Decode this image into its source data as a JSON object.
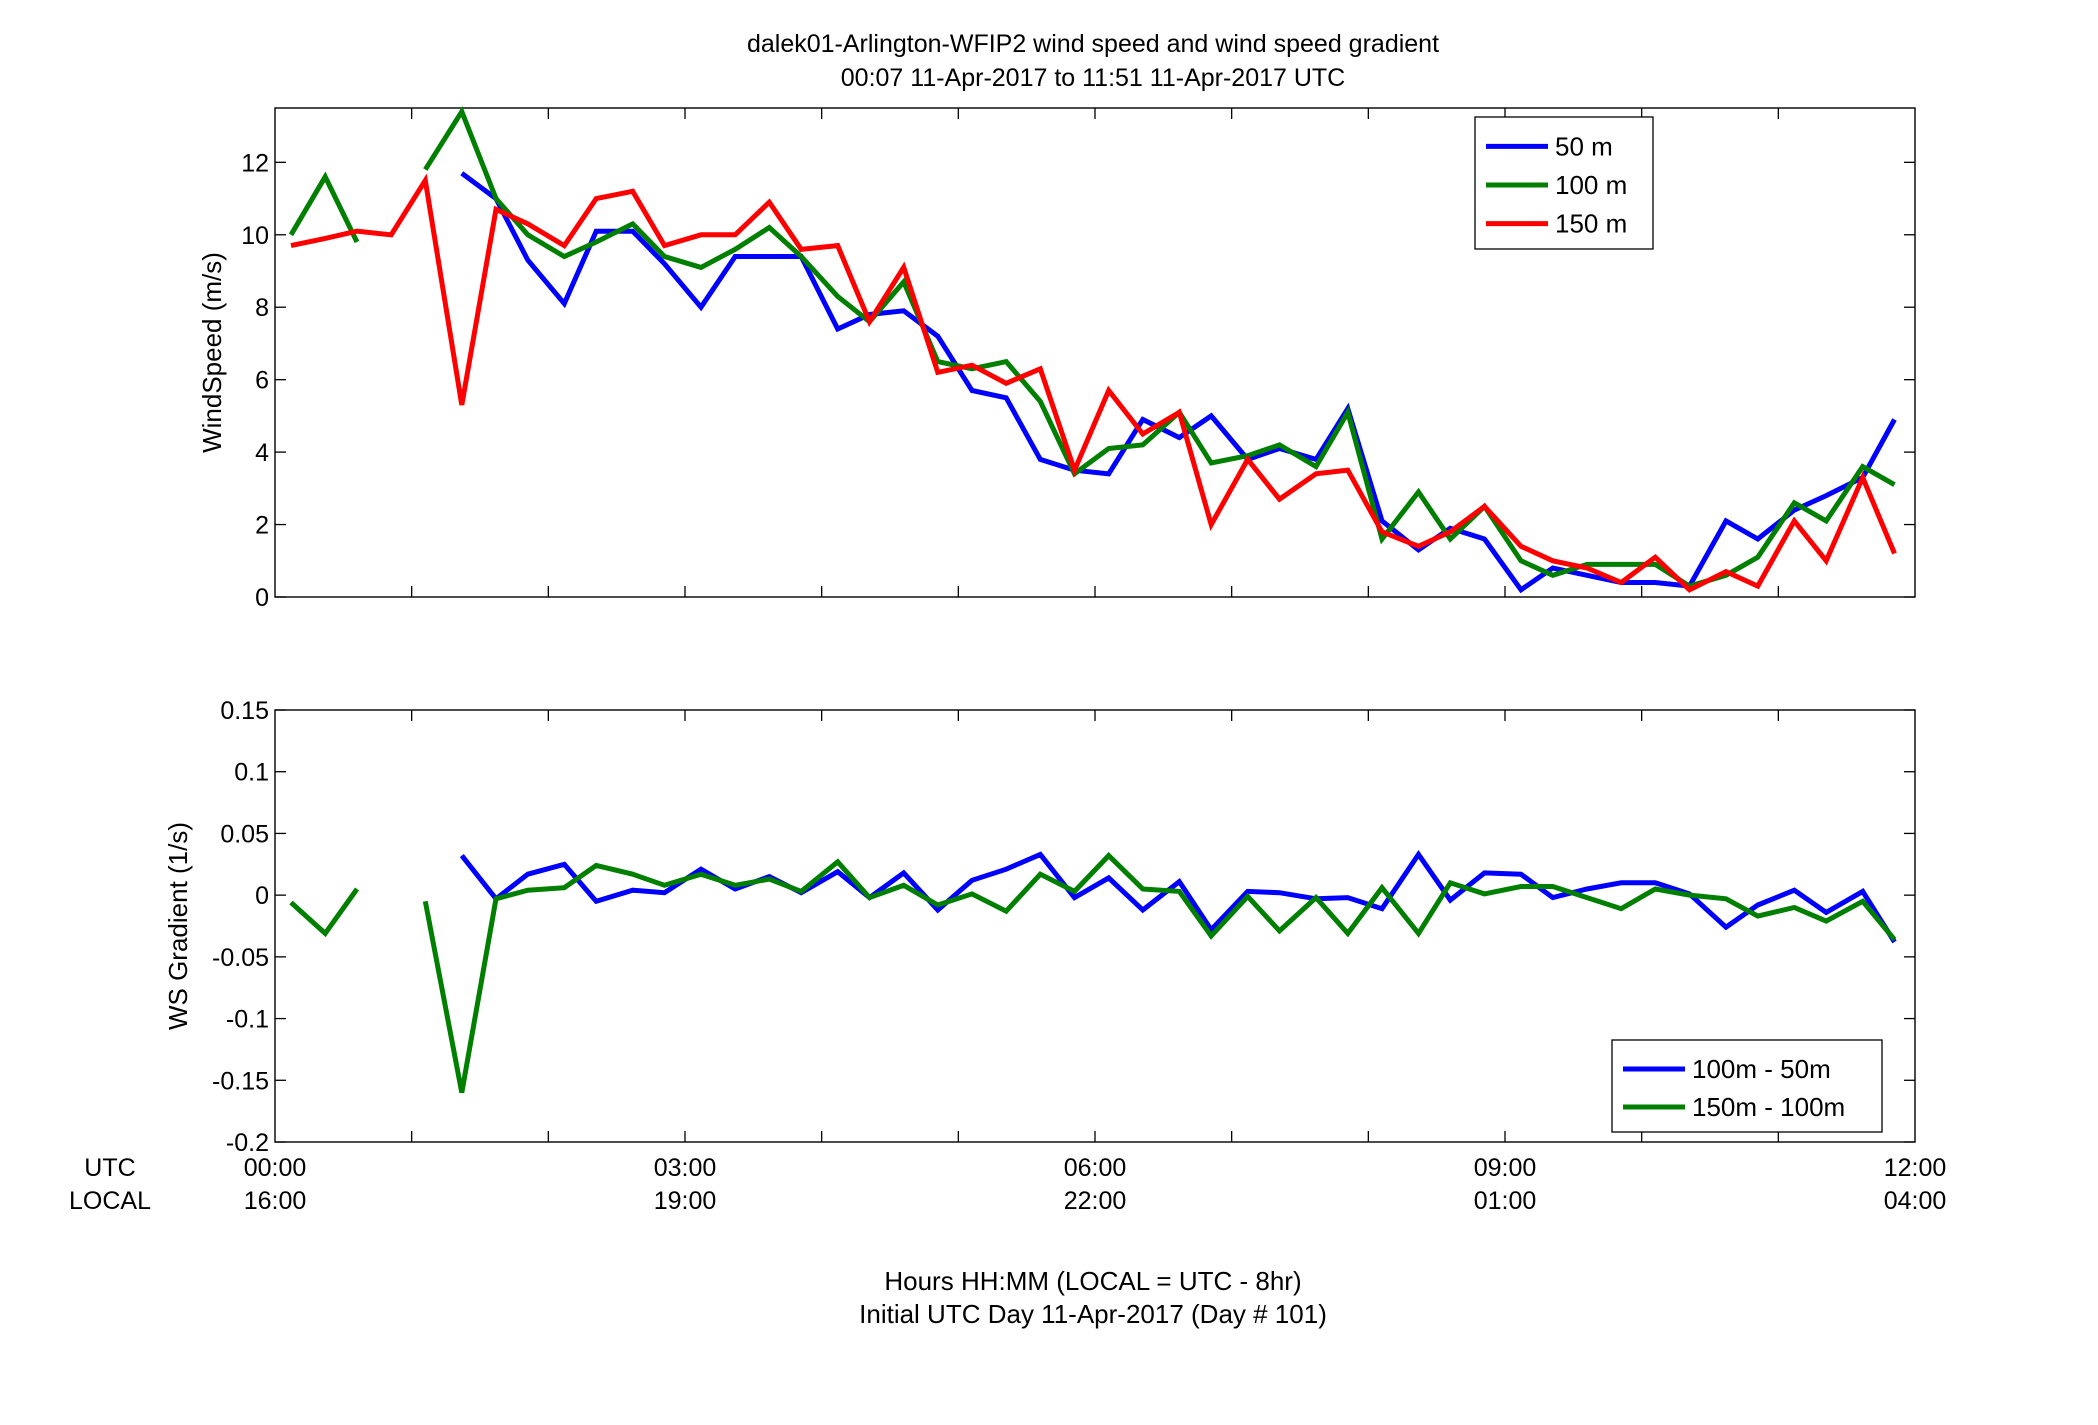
{
  "header": {
    "title_line1": "dalek01-Arlington-WFIP2  wind speed and wind speed gradient",
    "title_line2": "00:07 11-Apr-2017 to 11:51 11-Apr-2017  UTC"
  },
  "footer": {
    "xlabel_line1": "Hours HH:MM  (LOCAL = UTC - 8hr)",
    "xlabel_line2": "Initial UTC Day 11-Apr-2017 (Day # 101)"
  },
  "time_axis": {
    "row_label_utc": "UTC",
    "row_label_local": "LOCAL",
    "ticks_hours": [
      0,
      3,
      6,
      9,
      12
    ],
    "utc_labels": [
      "00:00",
      "03:00",
      "06:00",
      "09:00",
      "12:00"
    ],
    "local_labels": [
      "16:00",
      "19:00",
      "22:00",
      "01:00",
      "04:00"
    ]
  },
  "colors": {
    "blue": "#0000ff",
    "green": "#007f00",
    "red": "#ff0000"
  },
  "chart_data": [
    {
      "type": "line",
      "ylabel": "WindSpeed (m/s)",
      "xlim_hours": [
        0,
        12
      ],
      "ylim": [
        0,
        13.5
      ],
      "yticks": [
        0,
        2,
        4,
        6,
        8,
        10,
        12
      ],
      "ytick_labels": [
        "0",
        "2",
        "4",
        "6",
        "8",
        "10",
        "12"
      ],
      "legend_position": "top-right",
      "x_hours": [
        0.117,
        0.367,
        0.6,
        0.85,
        1.1,
        1.367,
        1.617,
        1.85,
        2.117,
        2.35,
        2.617,
        2.85,
        3.117,
        3.367,
        3.617,
        3.85,
        4.117,
        4.35,
        4.6,
        4.85,
        5.1,
        5.35,
        5.6,
        5.85,
        6.1,
        6.35,
        6.617,
        6.85,
        7.117,
        7.35,
        7.617,
        7.85,
        8.1,
        8.367,
        8.6,
        8.85,
        9.117,
        9.35,
        9.6,
        9.85,
        10.1,
        10.35,
        10.617,
        10.85,
        11.117,
        11.35,
        11.617,
        11.85
      ],
      "series": [
        {
          "name": "50 m",
          "color": "#0000ff",
          "values": [
            null,
            null,
            null,
            null,
            null,
            11.7,
            11.0,
            9.3,
            8.1,
            10.1,
            10.1,
            9.2,
            8.0,
            9.4,
            9.4,
            9.4,
            7.4,
            7.8,
            7.9,
            7.2,
            5.7,
            5.5,
            3.8,
            3.5,
            3.4,
            4.9,
            4.4,
            5.0,
            3.8,
            4.1,
            3.8,
            5.2,
            2.1,
            1.3,
            1.9,
            1.6,
            0.2,
            0.8,
            0.6,
            0.4,
            0.4,
            0.3,
            2.1,
            1.6,
            2.4,
            2.8,
            3.3,
            4.9
          ]
        },
        {
          "name": "100 m",
          "color": "#007f00",
          "values": [
            10.0,
            11.6,
            9.8,
            null,
            11.8,
            13.4,
            11.0,
            10.0,
            9.4,
            9.8,
            10.3,
            9.4,
            9.1,
            9.6,
            10.2,
            9.4,
            8.3,
            7.6,
            8.7,
            6.5,
            6.3,
            6.5,
            5.4,
            3.4,
            4.1,
            4.2,
            5.1,
            3.7,
            3.9,
            4.2,
            3.6,
            5.1,
            1.6,
            2.9,
            1.6,
            2.5,
            1.0,
            0.6,
            0.9,
            0.9,
            0.9,
            0.3,
            0.6,
            1.1,
            2.6,
            2.1,
            3.6,
            3.1
          ]
        },
        {
          "name": "150 m",
          "color": "#ff0000",
          "values": [
            9.7,
            9.9,
            10.1,
            10.0,
            11.5,
            5.3,
            10.7,
            10.3,
            9.7,
            11.0,
            11.2,
            9.7,
            10.0,
            10.0,
            10.9,
            9.6,
            9.7,
            7.6,
            9.1,
            6.2,
            6.4,
            5.9,
            6.3,
            3.5,
            5.7,
            4.5,
            5.1,
            2.0,
            3.8,
            2.7,
            3.4,
            3.5,
            1.8,
            1.4,
            1.8,
            2.5,
            1.4,
            1.0,
            0.8,
            0.4,
            1.1,
            0.2,
            0.7,
            0.3,
            2.1,
            1.0,
            3.3,
            1.2
          ]
        }
      ]
    },
    {
      "type": "line",
      "ylabel": "WS Gradient (1/s)",
      "xlim_hours": [
        0,
        12
      ],
      "ylim": [
        -0.2,
        0.15
      ],
      "yticks": [
        -0.2,
        -0.15,
        -0.1,
        -0.05,
        0,
        0.05,
        0.1,
        0.15
      ],
      "ytick_labels": [
        "-0.2",
        "-0.15",
        "-0.1",
        "-0.05",
        "0",
        "0.05",
        "0.1",
        "0.15"
      ],
      "legend_position": "bottom-right",
      "x_hours": [
        0.117,
        0.367,
        0.6,
        0.85,
        1.1,
        1.367,
        1.617,
        1.85,
        2.117,
        2.35,
        2.617,
        2.85,
        3.117,
        3.367,
        3.617,
        3.85,
        4.117,
        4.35,
        4.6,
        4.85,
        5.1,
        5.35,
        5.6,
        5.85,
        6.1,
        6.35,
        6.617,
        6.85,
        7.117,
        7.35,
        7.617,
        7.85,
        8.1,
        8.367,
        8.6,
        8.85,
        9.117,
        9.35,
        9.6,
        9.85,
        10.1,
        10.35,
        10.617,
        10.85,
        11.117,
        11.35,
        11.617,
        11.85
      ],
      "series": [
        {
          "name": "100m - 50m",
          "color": "#0000ff",
          "values": [
            null,
            null,
            null,
            null,
            null,
            0.032,
            -0.003,
            0.017,
            0.025,
            -0.005,
            0.004,
            0.002,
            0.021,
            0.005,
            0.015,
            0.002,
            0.019,
            -0.002,
            0.018,
            -0.012,
            0.012,
            0.021,
            0.033,
            -0.002,
            0.014,
            -0.012,
            0.011,
            -0.028,
            0.003,
            0.002,
            -0.003,
            -0.002,
            -0.011,
            0.033,
            -0.004,
            0.018,
            0.017,
            -0.002,
            0.005,
            0.01,
            0.01,
            0.001,
            -0.026,
            -0.008,
            0.004,
            -0.014,
            0.003,
            -0.038
          ]
        },
        {
          "name": "150m - 100m",
          "color": "#007f00",
          "values": [
            -0.006,
            -0.031,
            0.005,
            null,
            -0.005,
            -0.16,
            -0.003,
            0.004,
            0.006,
            0.024,
            0.017,
            0.008,
            0.017,
            0.008,
            0.013,
            0.003,
            0.027,
            -0.002,
            0.008,
            -0.008,
            0.001,
            -0.013,
            0.017,
            0.003,
            0.032,
            0.005,
            0.003,
            -0.033,
            -0.001,
            -0.029,
            -0.002,
            -0.031,
            0.006,
            -0.031,
            0.01,
            0.001,
            0.007,
            0.007,
            -0.002,
            -0.011,
            0.005,
            0.0,
            -0.003,
            -0.017,
            -0.01,
            -0.021,
            -0.005,
            -0.036
          ]
        }
      ]
    }
  ]
}
